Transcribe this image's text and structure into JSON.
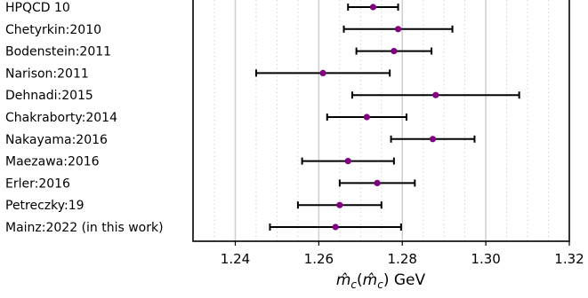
{
  "chart_data": {
    "type": "scatter",
    "subtype": "forest-plot-with-error-bars",
    "title": "",
    "xlabel": "m̂_c(m̂_c) GeV",
    "ylabel": "",
    "xlim": [
      1.23,
      1.32
    ],
    "x_ticks": [
      "1.24",
      "1.26",
      "1.28",
      "1.30",
      "1.32"
    ],
    "grid": "vertical major (solid) and minor (dotted)",
    "marker_color": "#800080",
    "categories": [
      "HPQCD 10",
      "Chetyrkin:2010",
      "Bodenstein:2011",
      "Narison:2011",
      "Dehnadi:2015",
      "Chakraborty:2014",
      "Nakayama:2016",
      "Maezawa:2016",
      "Erler:2016",
      "Petreczky:19",
      "Mainz:2022 (in this work)"
    ],
    "values": [
      1.273,
      1.279,
      1.278,
      1.261,
      1.288,
      1.2715,
      1.2873,
      1.267,
      1.274,
      1.265,
      1.264
    ],
    "err_low": [
      1.267,
      1.266,
      1.269,
      1.245,
      1.268,
      1.262,
      1.2773,
      1.256,
      1.265,
      1.255,
      1.2483
    ],
    "err_high": [
      1.279,
      1.292,
      1.287,
      1.277,
      1.308,
      1.281,
      1.2973,
      1.278,
      1.283,
      1.275,
      1.2797
    ]
  }
}
